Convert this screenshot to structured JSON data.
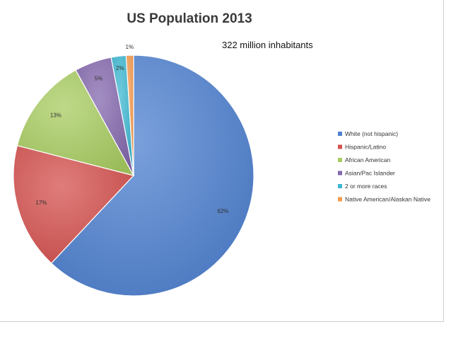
{
  "chart_data": {
    "type": "pie",
    "title": "US Population 2013",
    "subtitle": "322 million inhabitants",
    "legend_position": "right",
    "slices": [
      {
        "label": "White (not hispanic)",
        "value": 62,
        "display": "62%",
        "color": "#4f81d0"
      },
      {
        "label": "Hispanic/Latino",
        "value": 17,
        "display": "17%",
        "color": "#d4514f"
      },
      {
        "label": "African American",
        "value": 13,
        "display": "13%",
        "color": "#a8cc62"
      },
      {
        "label": "Asian/Pac Islander",
        "value": 5,
        "display": "5%",
        "color": "#8468ad"
      },
      {
        "label": "2 or more races",
        "value": 2,
        "display": "2%",
        "color": "#3fb8d2"
      },
      {
        "label": "Native American/Alaskan Native",
        "value": 1,
        "display": "1%",
        "color": "#f59a4d"
      }
    ]
  }
}
